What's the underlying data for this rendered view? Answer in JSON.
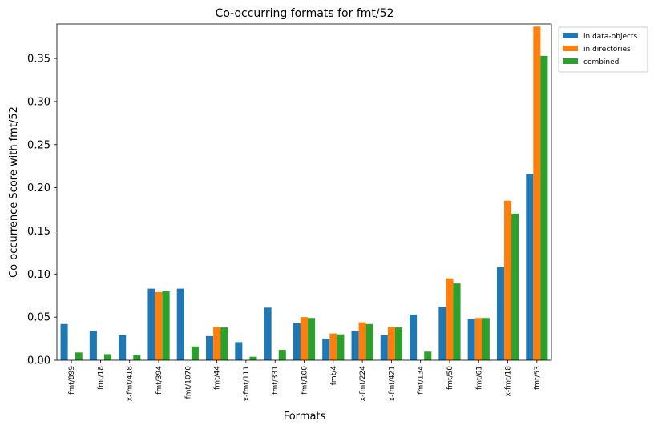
{
  "chart_data": {
    "type": "bar",
    "title": "Co-occurring formats for fmt/52",
    "xlabel": "Formats",
    "ylabel": "Co-occurrence Score with fmt/52",
    "ylim": [
      0,
      0.39
    ],
    "yticks": [
      "0.00",
      "0.05",
      "0.10",
      "0.15",
      "0.20",
      "0.25",
      "0.30",
      "0.35"
    ],
    "legend_position": "outside-top-right",
    "categories": [
      "fmt/899",
      "fmt/18",
      "x-fmt/418",
      "fmt/394",
      "fmt/1070",
      "fmt/44",
      "x-fmt/111",
      "fmt/331",
      "fmt/100",
      "fmt/4",
      "x-fmt/224",
      "x-fmt/421",
      "fmt/134",
      "fmt/50",
      "fmt/61",
      "x-fmt/18",
      "fmt/53"
    ],
    "series": [
      {
        "name": "in data-objects",
        "color": "#1f77b4",
        "values": [
          0.042,
          0.034,
          0.029,
          0.083,
          0.083,
          0.028,
          0.021,
          0.061,
          0.043,
          0.025,
          0.034,
          0.029,
          0.053,
          0.062,
          0.048,
          0.108,
          0.216
        ]
      },
      {
        "name": "in directories",
        "color": "#ff7f0e",
        "values": [
          0.0,
          0.0,
          0.0,
          0.079,
          0.0,
          0.039,
          0.0,
          0.0,
          0.05,
          0.031,
          0.044,
          0.039,
          0.0,
          0.095,
          0.049,
          0.185,
          0.387
        ]
      },
      {
        "name": "combined",
        "color": "#2ca02c",
        "values": [
          0.009,
          0.007,
          0.006,
          0.08,
          0.016,
          0.038,
          0.004,
          0.012,
          0.049,
          0.03,
          0.042,
          0.038,
          0.01,
          0.089,
          0.049,
          0.17,
          0.353
        ]
      }
    ]
  }
}
